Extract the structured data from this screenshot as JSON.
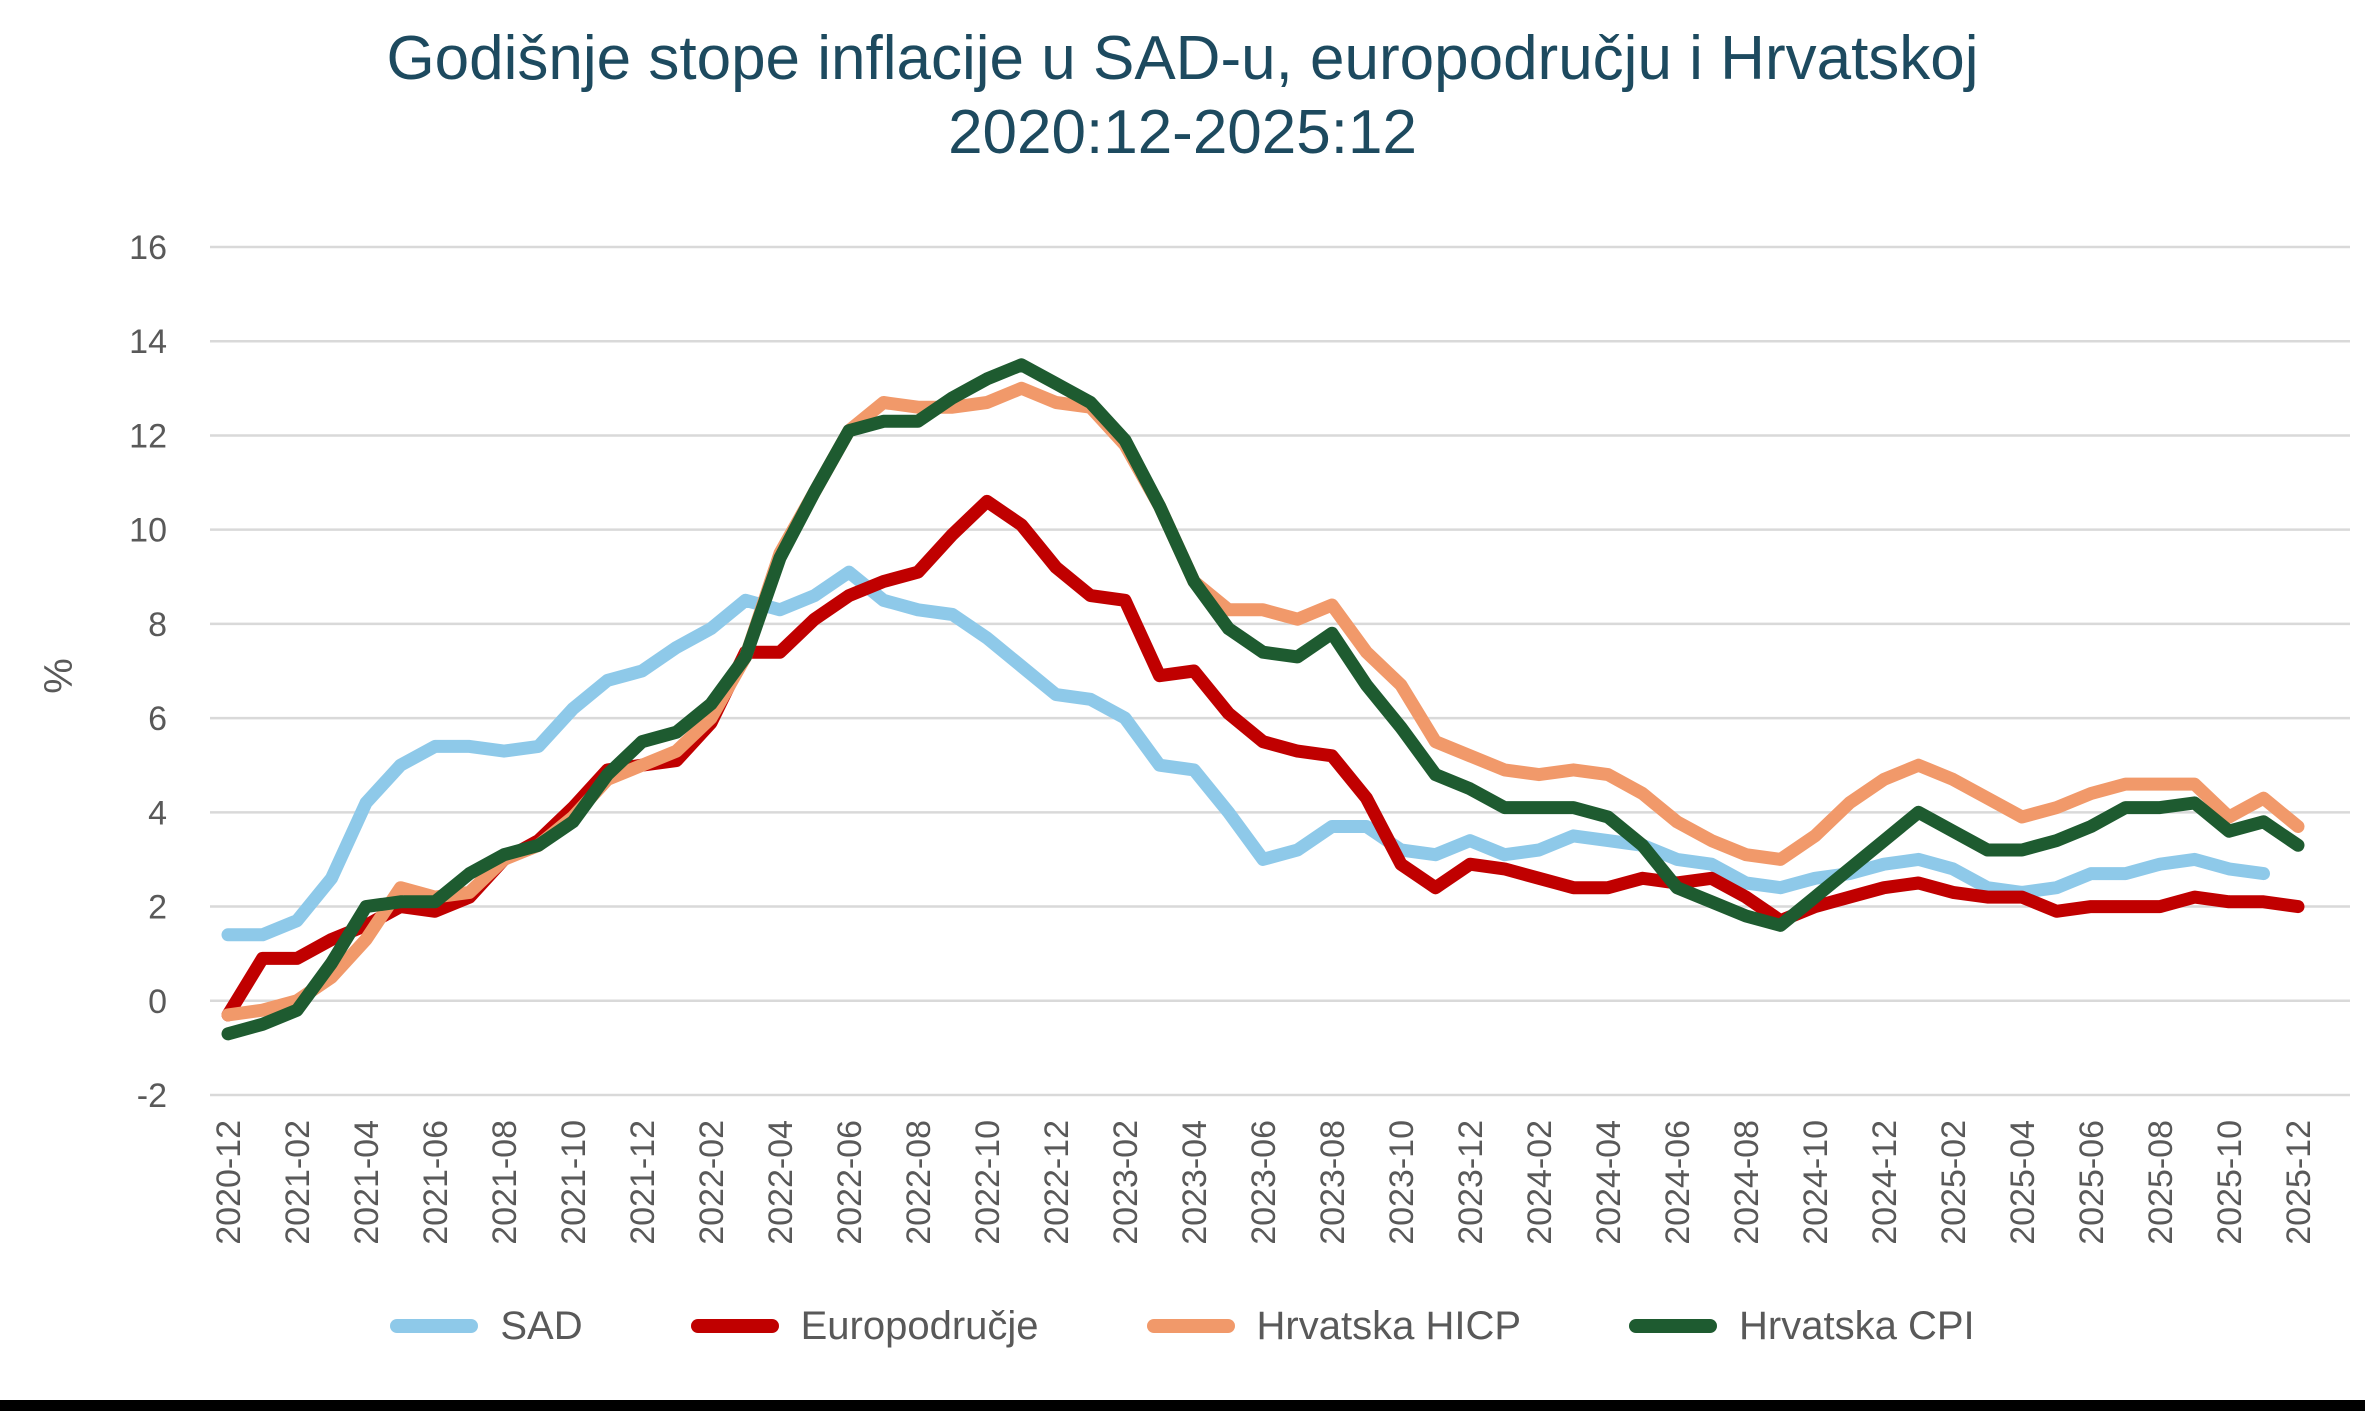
{
  "title": {
    "line1": "Godišnje stope inflacije u SAD-u, europodručju i Hrvatskoj",
    "line2": "2020:12-2025:12"
  },
  "colors": {
    "title_text": "#1d4a5f",
    "axis_text": "#595959",
    "gridline": "#d9d9d9",
    "background": "#ffffff",
    "bottom_bar": "#000000"
  },
  "chart_data": {
    "type": "line",
    "title": "Godišnje stope inflacije u SAD-u, europodručju i Hrvatskoj",
    "subtitle": "2020:12-2025:12",
    "xlabel": "",
    "ylabel": "%",
    "ylim": [
      -2,
      16
    ],
    "ytick_step": 2,
    "y_ticks": [
      16,
      14,
      12,
      10,
      8,
      6,
      4,
      2,
      0,
      -2
    ],
    "grid": "horizontal",
    "legend_position": "bottom",
    "x_tick_interval": 2,
    "x_tick_labels": [
      "2020-12",
      "2021-02",
      "2021-04",
      "2021-06",
      "2021-08",
      "2021-10",
      "2021-12",
      "2022-02",
      "2022-04",
      "2022-06",
      "2022-08",
      "2022-10",
      "2022-12",
      "2023-02",
      "2023-04",
      "2023-06",
      "2023-08",
      "2023-10",
      "2023-12",
      "2024-02",
      "2024-04",
      "2024-06",
      "2024-08",
      "2024-10",
      "2024-12",
      "2025-02",
      "2025-04",
      "2025-06",
      "2025-08",
      "2025-10",
      "2025-12"
    ],
    "x": [
      "2020-12",
      "2021-01",
      "2021-02",
      "2021-03",
      "2021-04",
      "2021-05",
      "2021-06",
      "2021-07",
      "2021-08",
      "2021-09",
      "2021-10",
      "2021-11",
      "2021-12",
      "2022-01",
      "2022-02",
      "2022-03",
      "2022-04",
      "2022-05",
      "2022-06",
      "2022-07",
      "2022-08",
      "2022-09",
      "2022-10",
      "2022-11",
      "2022-12",
      "2023-01",
      "2023-02",
      "2023-03",
      "2023-04",
      "2023-05",
      "2023-06",
      "2023-07",
      "2023-08",
      "2023-09",
      "2023-10",
      "2023-11",
      "2023-12",
      "2024-01",
      "2024-02",
      "2024-03",
      "2024-04",
      "2024-05",
      "2024-06",
      "2024-07",
      "2024-08",
      "2024-09",
      "2024-10",
      "2024-11",
      "2024-12",
      "2025-01",
      "2025-02",
      "2025-03",
      "2025-04",
      "2025-05",
      "2025-06",
      "2025-07",
      "2025-08",
      "2025-09",
      "2025-10",
      "2025-11",
      "2025-12"
    ],
    "series": [
      {
        "key": "sad",
        "name": "SAD",
        "color": "#8ec9e9",
        "values": [
          1.4,
          1.4,
          1.7,
          2.6,
          4.2,
          5.0,
          5.4,
          5.4,
          5.3,
          5.4,
          6.2,
          6.8,
          7.0,
          7.5,
          7.9,
          8.5,
          8.3,
          8.6,
          9.1,
          8.5,
          8.3,
          8.2,
          7.7,
          7.1,
          6.5,
          6.4,
          6.0,
          5.0,
          4.9,
          4.0,
          3.0,
          3.2,
          3.7,
          3.7,
          3.2,
          3.1,
          3.4,
          3.1,
          3.2,
          3.5,
          3.4,
          3.3,
          3.0,
          2.9,
          2.5,
          2.4,
          2.6,
          2.7,
          2.9,
          3.0,
          2.8,
          2.4,
          2.3,
          2.4,
          2.7,
          2.7,
          2.9,
          3.0,
          2.8,
          2.7,
          null
        ]
      },
      {
        "key": "europodrucje",
        "name": "Europodručje",
        "color": "#c00000",
        "values": [
          -0.3,
          0.9,
          0.9,
          1.3,
          1.6,
          2.0,
          1.9,
          2.2,
          3.0,
          3.4,
          4.1,
          4.9,
          5.0,
          5.1,
          5.9,
          7.4,
          7.4,
          8.1,
          8.6,
          8.9,
          9.1,
          9.9,
          10.6,
          10.1,
          9.2,
          8.6,
          8.5,
          6.9,
          7.0,
          6.1,
          5.5,
          5.3,
          5.2,
          4.3,
          2.9,
          2.4,
          2.9,
          2.8,
          2.6,
          2.4,
          2.4,
          2.6,
          2.5,
          2.6,
          2.2,
          1.7,
          2.0,
          2.2,
          2.4,
          2.5,
          2.3,
          2.2,
          2.2,
          1.9,
          2.0,
          2.0,
          2.0,
          2.2,
          2.1,
          2.1,
          2.0
        ]
      },
      {
        "key": "hrvatska-hicp",
        "name": "Hrvatska HICP",
        "color": "#f1996a",
        "values": [
          -0.3,
          -0.2,
          0.0,
          0.5,
          1.3,
          2.4,
          2.2,
          2.3,
          3.0,
          3.3,
          3.9,
          4.7,
          5.0,
          5.3,
          6.0,
          7.3,
          9.5,
          10.8,
          12.1,
          12.7,
          12.6,
          12.6,
          12.7,
          13.0,
          12.7,
          12.6,
          11.8,
          10.5,
          8.9,
          8.3,
          8.3,
          8.1,
          8.4,
          7.4,
          6.7,
          5.5,
          5.2,
          4.9,
          4.8,
          4.9,
          4.8,
          4.4,
          3.8,
          3.4,
          3.1,
          3.0,
          3.5,
          4.2,
          4.7,
          5.0,
          4.7,
          4.3,
          3.9,
          4.1,
          4.4,
          4.6,
          4.6,
          4.6,
          3.9,
          4.3,
          3.7
        ]
      },
      {
        "key": "hrvatska-cpi",
        "name": "Hrvatska CPI",
        "color": "#1e5b30",
        "values": [
          -0.7,
          -0.5,
          -0.2,
          0.8,
          2.0,
          2.1,
          2.1,
          2.7,
          3.1,
          3.3,
          3.8,
          4.8,
          5.5,
          5.7,
          6.3,
          7.3,
          9.4,
          10.8,
          12.1,
          12.3,
          12.3,
          12.8,
          13.2,
          13.5,
          13.1,
          12.7,
          11.9,
          10.5,
          8.9,
          7.9,
          7.4,
          7.3,
          7.8,
          6.7,
          5.8,
          4.8,
          4.5,
          4.1,
          4.1,
          4.1,
          3.9,
          3.3,
          2.4,
          2.1,
          1.8,
          1.6,
          2.2,
          2.8,
          3.4,
          4.0,
          3.6,
          3.2,
          3.2,
          3.4,
          3.7,
          4.1,
          4.1,
          4.2,
          3.6,
          3.8,
          3.3
        ]
      }
    ]
  }
}
